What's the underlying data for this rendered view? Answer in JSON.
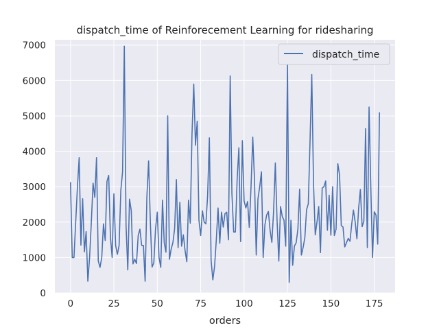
{
  "chart_data": {
    "type": "line",
    "title": "dispatch_time of Reinforecement Learning for ridesharing",
    "xlabel": "orders",
    "ylabel": "",
    "xlim": [
      -9,
      187
    ],
    "ylim": [
      0,
      7150
    ],
    "xticks": [
      0,
      25,
      50,
      75,
      100,
      125,
      150,
      175
    ],
    "yticks": [
      0,
      1000,
      2000,
      3000,
      4000,
      5000,
      6000,
      7000
    ],
    "grid": true,
    "legend_position": "top-right",
    "series": [
      {
        "name": "dispatch_time",
        "color": "#4c72b0",
        "x": [
          0,
          1,
          2,
          3,
          4,
          5,
          6,
          7,
          8,
          9,
          10,
          11,
          12,
          13,
          14,
          15,
          16,
          17,
          18,
          19,
          20,
          21,
          22,
          23,
          24,
          25,
          26,
          27,
          28,
          29,
          30,
          31,
          32,
          33,
          34,
          35,
          36,
          37,
          38,
          39,
          40,
          41,
          42,
          43,
          44,
          45,
          46,
          47,
          48,
          49,
          50,
          51,
          52,
          53,
          54,
          55,
          56,
          57,
          58,
          59,
          60,
          61,
          62,
          63,
          64,
          65,
          66,
          67,
          68,
          69,
          70,
          71,
          72,
          73,
          74,
          75,
          76,
          77,
          78,
          79,
          80,
          81,
          82,
          83,
          84,
          85,
          86,
          87,
          88,
          89,
          90,
          91,
          92,
          93,
          94,
          95,
          96,
          97,
          98,
          99,
          100,
          101,
          102,
          103,
          104,
          105,
          106,
          107,
          108,
          109,
          110,
          111,
          112,
          113,
          114,
          115,
          116,
          117,
          118,
          119,
          120,
          121,
          122,
          123,
          124,
          125,
          126,
          127,
          128,
          129,
          130,
          131,
          132,
          133,
          134,
          135,
          136,
          137,
          138,
          139,
          140,
          141,
          142,
          143,
          144,
          145,
          146,
          147,
          148,
          149,
          150,
          151,
          152,
          153,
          154,
          155,
          156,
          157,
          158,
          159,
          160,
          161,
          162,
          163,
          164,
          165,
          166,
          167,
          168,
          169,
          170,
          171,
          172,
          173,
          174,
          175,
          176,
          177,
          178
        ],
        "values": [
          3130,
          1000,
          1000,
          2000,
          3000,
          3820,
          1350,
          2660,
          1160,
          1730,
          330,
          1000,
          2000,
          3100,
          2700,
          3820,
          900,
          720,
          1000,
          1950,
          1480,
          3150,
          3320,
          1580,
          1000,
          2800,
          1340,
          1090,
          1340,
          2900,
          3420,
          6970,
          1900,
          650,
          2650,
          2330,
          820,
          950,
          830,
          1620,
          1800,
          1340,
          1340,
          330,
          2700,
          3730,
          2000,
          730,
          850,
          1820,
          2280,
          1000,
          720,
          2620,
          1420,
          1150,
          5000,
          950,
          1240,
          1420,
          1820,
          3200,
          1280,
          2560,
          1320,
          1640,
          1200,
          880,
          2620,
          1970,
          4500,
          5900,
          4170,
          4850,
          2050,
          1620,
          2320,
          2000,
          1950,
          2750,
          4380,
          920,
          370,
          750,
          1500,
          2400,
          1400,
          2280,
          1860,
          2240,
          2280,
          1500,
          6130,
          2800,
          1720,
          1720,
          3200,
          4100,
          1450,
          4300,
          2600,
          2400,
          2580,
          1850,
          3000,
          4400,
          3200,
          1070,
          2660,
          3000,
          3420,
          1000,
          1920,
          2200,
          2300,
          1760,
          1430,
          2300,
          3670,
          2050,
          900,
          2440,
          2160,
          2050,
          1320,
          6460,
          300,
          2050,
          780,
          1320,
          1420,
          1800,
          2930,
          1070,
          1280,
          1560,
          2350,
          2520,
          4300,
          6170,
          3100,
          1640,
          2000,
          2440,
          1140,
          2960,
          3000,
          3160,
          1770,
          2760,
          1630,
          3000,
          1620,
          1800,
          3650,
          3330,
          1900,
          1860,
          1300,
          1420,
          1540,
          1460,
          1940,
          2340,
          2000,
          1530,
          2400,
          2920,
          1870,
          2030,
          4640,
          1280,
          5250,
          3000,
          1000,
          2290,
          2200,
          1380,
          5100
        ]
      }
    ]
  }
}
